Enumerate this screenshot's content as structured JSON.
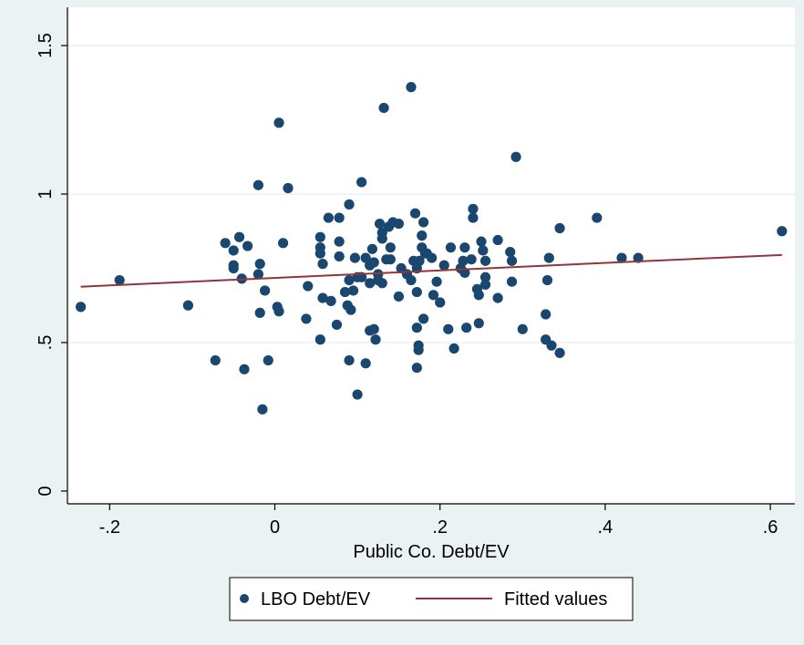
{
  "chart_data": {
    "type": "scatter",
    "title": "",
    "xlabel": "Public Co. Debt/EV",
    "ylabel": "",
    "xlim": [
      -0.24,
      0.625
    ],
    "ylim": [
      -0.02,
      1.5
    ],
    "xticks": [
      {
        "value": -0.2,
        "label": "-.2"
      },
      {
        "value": 0,
        "label": "0"
      },
      {
        "value": 0.2,
        "label": ".2"
      },
      {
        "value": 0.4,
        "label": ".4"
      },
      {
        "value": 0.6,
        "label": ".6"
      }
    ],
    "yticks": [
      {
        "value": 0,
        "label": "0"
      },
      {
        "value": 0.5,
        "label": ".5"
      },
      {
        "value": 1,
        "label": "1"
      },
      {
        "value": 1.5,
        "label": "1.5"
      }
    ],
    "grid": "horizontal",
    "legend_position": "bottom",
    "colors": {
      "background": "#eaf2f3",
      "plot_background": "#ffffff",
      "points": "#1a476f",
      "fit_line": "#90353b"
    },
    "series": [
      {
        "name": "LBO Debt/EV",
        "kind": "scatter",
        "points": [
          [
            -0.235,
            0.62
          ],
          [
            -0.188,
            0.71
          ],
          [
            -0.105,
            0.625
          ],
          [
            -0.072,
            0.44
          ],
          [
            -0.06,
            0.835
          ],
          [
            -0.05,
            0.81
          ],
          [
            -0.05,
            0.76
          ],
          [
            -0.05,
            0.75
          ],
          [
            -0.043,
            0.855
          ],
          [
            -0.04,
            0.715
          ],
          [
            -0.037,
            0.41
          ],
          [
            -0.033,
            0.825
          ],
          [
            -0.02,
            1.03
          ],
          [
            -0.02,
            0.73
          ],
          [
            -0.018,
            0.765
          ],
          [
            -0.018,
            0.6
          ],
          [
            -0.015,
            0.275
          ],
          [
            -0.012,
            0.675
          ],
          [
            -0.008,
            0.44
          ],
          [
            0.003,
            0.62
          ],
          [
            0.005,
            1.24
          ],
          [
            0.005,
            0.605
          ],
          [
            0.01,
            0.835
          ],
          [
            0.016,
            1.02
          ],
          [
            0.04,
            0.69
          ],
          [
            0.038,
            0.58
          ],
          [
            0.055,
            0.855
          ],
          [
            0.055,
            0.82
          ],
          [
            0.055,
            0.8
          ],
          [
            0.055,
            0.51
          ],
          [
            0.058,
            0.765
          ],
          [
            0.058,
            0.65
          ],
          [
            0.065,
            0.92
          ],
          [
            0.068,
            0.64
          ],
          [
            0.075,
            0.56
          ],
          [
            0.078,
            0.92
          ],
          [
            0.078,
            0.84
          ],
          [
            0.078,
            0.79
          ],
          [
            0.085,
            0.67
          ],
          [
            0.088,
            0.625
          ],
          [
            0.09,
            0.965
          ],
          [
            0.09,
            0.71
          ],
          [
            0.09,
            0.44
          ],
          [
            0.092,
            0.61
          ],
          [
            0.095,
            0.675
          ],
          [
            0.097,
            0.785
          ],
          [
            0.1,
            0.72
          ],
          [
            0.1,
            0.325
          ],
          [
            0.105,
            1.04
          ],
          [
            0.105,
            0.72
          ],
          [
            0.11,
            0.785
          ],
          [
            0.11,
            0.43
          ],
          [
            0.115,
            0.76
          ],
          [
            0.115,
            0.7
          ],
          [
            0.115,
            0.54
          ],
          [
            0.118,
            0.815
          ],
          [
            0.12,
            0.77
          ],
          [
            0.12,
            0.545
          ],
          [
            0.122,
            0.51
          ],
          [
            0.125,
            0.73
          ],
          [
            0.125,
            0.71
          ],
          [
            0.127,
            0.9
          ],
          [
            0.13,
            0.7
          ],
          [
            0.13,
            0.85
          ],
          [
            0.13,
            0.87
          ],
          [
            0.132,
            1.29
          ],
          [
            0.135,
            0.78
          ],
          [
            0.138,
            0.89
          ],
          [
            0.14,
            0.78
          ],
          [
            0.14,
            0.82
          ],
          [
            0.143,
            0.905
          ],
          [
            0.15,
            0.9
          ],
          [
            0.15,
            0.655
          ],
          [
            0.153,
            0.75
          ],
          [
            0.16,
            0.73
          ],
          [
            0.165,
            1.36
          ],
          [
            0.165,
            0.71
          ],
          [
            0.168,
            0.775
          ],
          [
            0.17,
            0.935
          ],
          [
            0.172,
            0.67
          ],
          [
            0.172,
            0.75
          ],
          [
            0.172,
            0.55
          ],
          [
            0.174,
            0.49
          ],
          [
            0.174,
            0.475
          ],
          [
            0.172,
            0.415
          ],
          [
            0.175,
            0.775
          ],
          [
            0.178,
            0.86
          ],
          [
            0.178,
            0.82
          ],
          [
            0.18,
            0.58
          ],
          [
            0.18,
            0.905
          ],
          [
            0.182,
            0.8
          ],
          [
            0.184,
            0.8
          ],
          [
            0.19,
            0.785
          ],
          [
            0.192,
            0.66
          ],
          [
            0.196,
            0.705
          ],
          [
            0.2,
            0.635
          ],
          [
            0.205,
            0.76
          ],
          [
            0.21,
            0.545
          ],
          [
            0.213,
            0.82
          ],
          [
            0.217,
            0.48
          ],
          [
            0.225,
            0.75
          ],
          [
            0.228,
            0.775
          ],
          [
            0.23,
            0.82
          ],
          [
            0.23,
            0.735
          ],
          [
            0.232,
            0.55
          ],
          [
            0.238,
            0.78
          ],
          [
            0.24,
            0.95
          ],
          [
            0.24,
            0.92
          ],
          [
            0.245,
            0.68
          ],
          [
            0.247,
            0.565
          ],
          [
            0.247,
            0.66
          ],
          [
            0.25,
            0.84
          ],
          [
            0.252,
            0.81
          ],
          [
            0.255,
            0.775
          ],
          [
            0.255,
            0.72
          ],
          [
            0.255,
            0.695
          ],
          [
            0.27,
            0.65
          ],
          [
            0.27,
            0.845
          ],
          [
            0.285,
            0.805
          ],
          [
            0.287,
            0.705
          ],
          [
            0.287,
            0.775
          ],
          [
            0.292,
            1.125
          ],
          [
            0.3,
            0.545
          ],
          [
            0.328,
            0.595
          ],
          [
            0.328,
            0.51
          ],
          [
            0.33,
            0.71
          ],
          [
            0.332,
            0.785
          ],
          [
            0.335,
            0.49
          ],
          [
            0.345,
            0.885
          ],
          [
            0.345,
            0.465
          ],
          [
            0.39,
            0.92
          ],
          [
            0.42,
            0.785
          ],
          [
            0.44,
            0.785
          ],
          [
            0.614,
            0.875
          ]
        ]
      },
      {
        "name": "Fitted values",
        "kind": "line",
        "points": [
          [
            -0.235,
            0.688
          ],
          [
            0.614,
            0.795
          ]
        ]
      }
    ]
  }
}
